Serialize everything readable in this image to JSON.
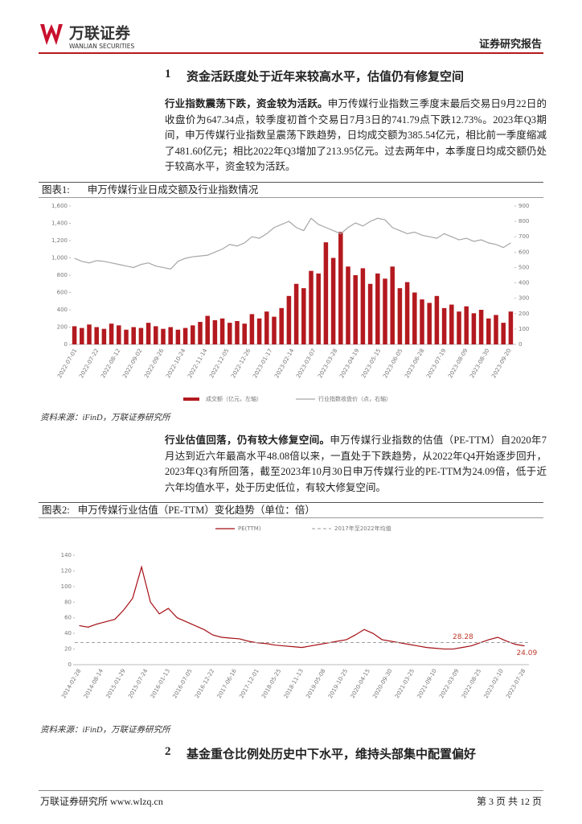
{
  "header": {
    "logo_cn": "万联证券",
    "logo_en": "WANLIAN SECURITIES",
    "doc_type": "证券研究报告"
  },
  "sections": [
    {
      "number": "1",
      "title": "资金活跃度处于近年来较高水平，估值仍有修复空间"
    },
    {
      "number": "2",
      "title": "基金重仓比例处历史中下水平，维持头部集中配置偏好"
    }
  ],
  "paragraphs": [
    {
      "lead": "行业指数震荡下跌，资金较为活跃。",
      "text": "申万传媒行业指数三季度末最后交易日9月22日的收盘价为647.34点，较季度初首个交易日7月3日的741.79点下跌12.73%。2023年Q3期间，申万传媒行业指数呈震荡下跌趋势，日均成交额为385.54亿元，相比前一季度缩减了481.60亿元；相比2022年Q3增加了213.95亿元。过去两年中，本季度日均成交额仍处于较高水平，资金较为活跃。"
    },
    {
      "lead": "行业估值回落，仍有较大修复空间。",
      "text": "申万传媒行业指数的估值（PE-TTM）自2020年7月达到近六年最高水平48.08倍以来，一直处于下跌趋势，从2022年Q4开始逐步回升，2023年Q3有所回落，截至2023年10月30日申万传媒行业的PE-TTM为24.09倍，低于近六年均值水平，处于历史低位，有较大修复空间。"
    }
  ],
  "figures": [
    {
      "label": "图表1:",
      "title": "申万传媒行业日成交额及行业指数情况",
      "source": "资料来源：iFinD，万联证券研究所",
      "chart_data": {
        "type": "bar",
        "xtick_labels": [
          "2022-07-01",
          "2022-07-22",
          "2022-08-12",
          "2022-09-02",
          "2022-09-26",
          "2022-10-24",
          "2022-11-14",
          "2022-12-05",
          "2022-12-26",
          "2023-01-17",
          "2023-02-14",
          "2023-03-07",
          "2023-03-28",
          "2023-04-19",
          "2023-05-15",
          "2023-06-05",
          "2023-06-28",
          "2023-07-19",
          "2023-08-09",
          "2023-08-30",
          "2023-09-20"
        ],
        "series": [
          {
            "name": "成交额（亿元，左轴）",
            "type": "bar",
            "color": "#b3191f",
            "values": [
              210,
              190,
              230,
              200,
              180,
              240,
              220,
              170,
              200,
              190,
              250,
              210,
              180,
              200,
              170,
              190,
              220,
              260,
              330,
              280,
              300,
              250,
              270,
              240,
              350,
              300,
              380,
              320,
              420,
              560,
              700,
              650,
              850,
              820,
              1180,
              1000,
              1300,
              900,
              800,
              880,
              700,
              820,
              760,
              900,
              650,
              720,
              600,
              520,
              480,
              560,
              420,
              460,
              380,
              440,
              360,
              400,
              300,
              340,
              250,
              380
            ]
          },
          {
            "name": "行业指数收盘价（点，右轴）",
            "type": "line",
            "axis": "y2",
            "color": "#a6a6a6",
            "values": [
              560,
              540,
              530,
              545,
              540,
              530,
              520,
              510,
              500,
              520,
              530,
              510,
              500,
              490,
              540,
              560,
              570,
              575,
              580,
              600,
              620,
              650,
              640,
              660,
              700,
              690,
              720,
              760,
              780,
              800,
              760,
              740,
              820,
              780,
              760,
              740,
              720,
              760,
              790,
              770,
              800,
              820,
              810,
              760,
              740,
              720,
              730,
              710,
              700,
              690,
              720,
              700,
              680,
              690,
              670,
              680,
              660,
              650,
              630,
              660
            ]
          }
        ],
        "ylim": [
          0,
          1600
        ],
        "yticks": [
          0,
          200,
          400,
          600,
          800,
          {
            "value": 1000,
            "label": "1,000"
          },
          {
            "value": 1200,
            "label": "1,200"
          },
          {
            "value": 1400,
            "label": "1,400"
          },
          {
            "value": 1600,
            "label": "1,600"
          }
        ],
        "y2lim": [
          0,
          900
        ],
        "y2ticks": [
          0,
          100,
          200,
          300,
          400,
          500,
          600,
          700,
          800,
          900
        ],
        "grid": false
      }
    },
    {
      "label": "图表2:",
      "title": "申万传媒行业估值（PE-TTM）变化趋势（单位：倍）",
      "source": "资料来源：iFinD，万联证券研究所",
      "chart_data": {
        "type": "line",
        "xtick_labels": [
          "2014-02-28",
          "2014-08-14",
          "2015-01-29",
          "2015-07-24",
          "2016-01-13",
          "2016-07-05",
          "2016-12-22",
          "2017-06-16",
          "2017-12-01",
          "2018-05-25",
          "2018-11-13",
          "2019-05-08",
          "2019-10-25",
          "2020-04-15",
          "2020-09-30",
          "2021-03-25",
          "2021-09-10",
          "2022-03-09",
          "2022-08-25",
          "2023-02-10",
          "2023-07-28"
        ],
        "series": [
          {
            "name": "PE(TTM)",
            "type": "line",
            "color": "#a50f15",
            "values": [
              50,
              48,
              52,
              55,
              58,
              70,
              85,
              125,
              80,
              65,
              72,
              60,
              55,
              50,
              45,
              38,
              35,
              34,
              33,
              30,
              28,
              27,
              25,
              24,
              23,
              22,
              24,
              26,
              28,
              30,
              32,
              38,
              45,
              40,
              32,
              30,
              28,
              26,
              24,
              22,
              21,
              20,
              20,
              22,
              24,
              28,
              32,
              35,
              30,
              26,
              24.09
            ]
          }
        ],
        "reference_lines": [
          {
            "name": "2017年至2022年均值",
            "value": 28.28,
            "color": "#9e9e9e",
            "style": "dashed"
          }
        ],
        "ylim": [
          0,
          140
        ],
        "yticks": [
          0,
          20,
          40,
          60,
          80,
          100,
          120,
          140
        ],
        "grid": false
      }
    }
  ],
  "footer": {
    "org": "万联证券研究所",
    "url": "www.wlzq.cn",
    "page": "第 3 页 共 12 页"
  }
}
